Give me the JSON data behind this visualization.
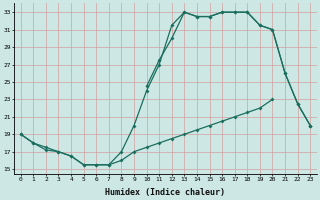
{
  "xlabel": "Humidex (Indice chaleur)",
  "bg_color": "#cde8e4",
  "grid_color": "#d4a0a0",
  "line_color": "#1a6e5e",
  "ylim": [
    14.5,
    34
  ],
  "yticks": [
    15,
    17,
    19,
    21,
    23,
    25,
    27,
    29,
    31,
    33
  ],
  "xlim": [
    -0.5,
    23.5
  ],
  "line_main_x": [
    0,
    1,
    2,
    3,
    4,
    5,
    6,
    7,
    8,
    9,
    10,
    11,
    12,
    13,
    14,
    15,
    16,
    17,
    18,
    19,
    20,
    21,
    22,
    23
  ],
  "line_main_y": [
    19,
    18,
    17.5,
    17,
    16.5,
    15.5,
    15.5,
    15.5,
    17,
    20,
    24,
    27,
    31.5,
    33,
    32.5,
    32.5,
    33,
    33,
    33,
    31.5,
    31,
    26,
    22.5,
    20
  ],
  "line_upper_x": [
    10,
    11,
    12,
    13,
    14,
    15,
    16,
    17,
    18,
    19,
    20,
    21,
    22,
    23
  ],
  "line_upper_y": [
    24.5,
    27.5,
    30,
    33,
    32.5,
    32.5,
    33,
    33,
    33,
    31.5,
    31,
    26,
    22.5,
    20
  ],
  "line_bottom_x": [
    0,
    1,
    2,
    3,
    4,
    5,
    6,
    7,
    8,
    9,
    10,
    11,
    12,
    13,
    14,
    15,
    16,
    17,
    18,
    19,
    20,
    22,
    23
  ],
  "line_bottom_y": [
    19,
    18,
    17.2,
    17,
    16.5,
    15.5,
    15.5,
    15.5,
    16,
    17,
    17.5,
    18,
    18.5,
    19,
    19.5,
    20,
    20.5,
    21,
    21.5,
    22,
    23,
    null,
    20
  ],
  "marker_size": 2.0,
  "linewidth": 0.9
}
